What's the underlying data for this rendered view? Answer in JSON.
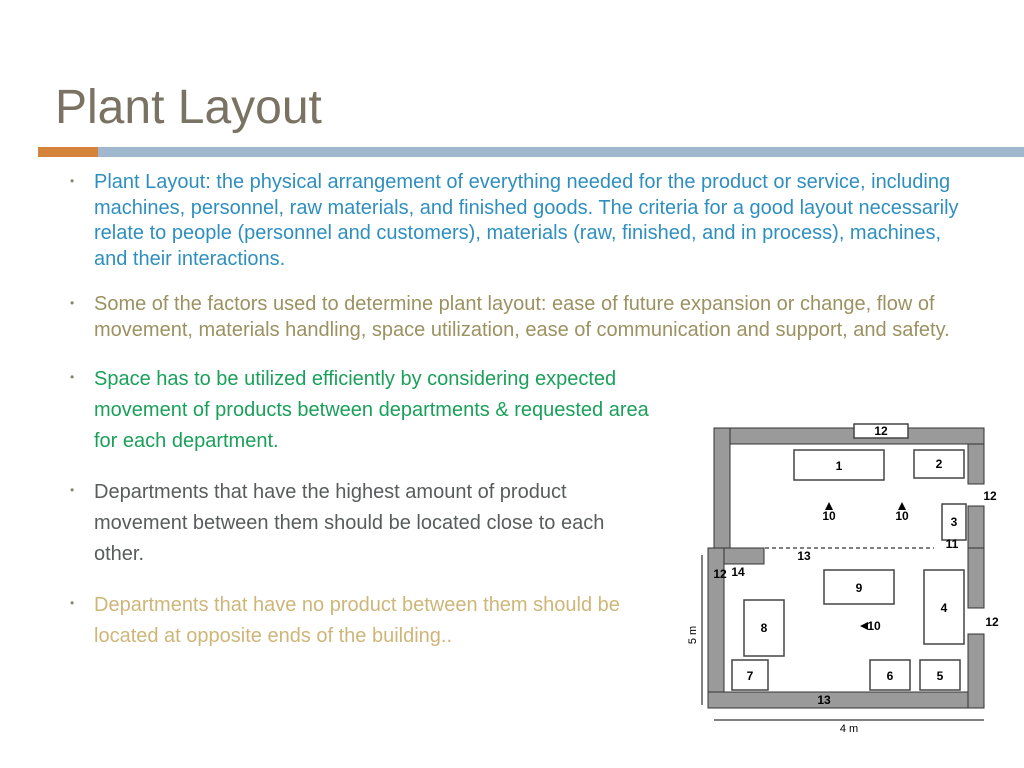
{
  "title": {
    "text": "Plant Layout",
    "color": "#7a7363",
    "fontsize": 48
  },
  "bar": {
    "accent_color": "#d5823b",
    "fill_color": "#9fb8ce",
    "height": 10
  },
  "bullets": [
    {
      "text": "Plant Layout: the physical arrangement of everything needed for the product or service, including machines, personnel, raw materials, and finished goods. The criteria for a good layout necessarily relate to people (personnel and customers), materials (raw, finished, and in process), machines, and their interactions.",
      "color": "#2e8fbf",
      "narrow": false
    },
    {
      "text": "Some of the factors used to determine plant layout: ease of future expansion or change, flow of movement, materials handling, space utilization, ease of communication and support, and safety.",
      "color": "#9c9160",
      "narrow": false
    },
    {
      "text": "Space has to be utilized efficiently by considering expected movement of products between departments & requested area for each department.",
      "color": "#1aa05a",
      "narrow": true
    },
    {
      "text": "Departments that have the highest amount of product movement between them should be located close to each other.",
      "color": "#595c5c",
      "narrow": true
    },
    {
      "text": "Departments that have no product between them should be  located at opposite ends of the building..",
      "color": "#ceb679",
      "narrow": true
    }
  ],
  "floorplan": {
    "type": "floorplan-diagram",
    "background_color": "#ffffff",
    "wall_color": "#9a9a9a",
    "box_stroke": "#444444",
    "label_color": "#000000",
    "dim_x": "4 m",
    "dim_y": "5 m",
    "room_labels": [
      "1",
      "2",
      "3",
      "4",
      "5",
      "6",
      "7",
      "8",
      "9",
      "10",
      "10",
      "10",
      "11",
      "12",
      "12",
      "12",
      "12",
      "13",
      "13",
      "14"
    ]
  }
}
